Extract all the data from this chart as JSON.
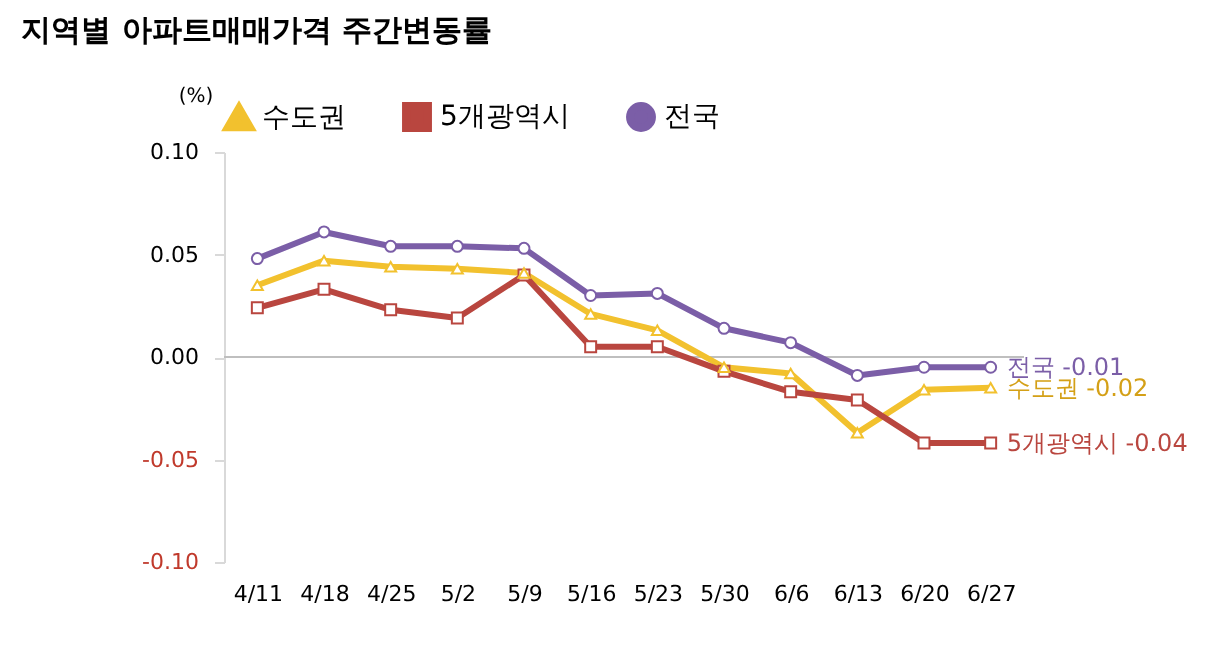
{
  "chart_data": {
    "type": "line",
    "title": "지역별 아파트매매가격 주간변동률",
    "ylabel": "(%)",
    "categories": [
      "4/11",
      "4/18",
      "4/25",
      "5/2",
      "5/9",
      "5/16",
      "5/23",
      "5/30",
      "6/6",
      "6/13",
      "6/20",
      "6/27"
    ],
    "series": [
      {
        "name": "수도권",
        "color": "#f2c12e",
        "marker": "triangle",
        "values": [
          0.035,
          0.047,
          0.044,
          0.043,
          0.041,
          0.021,
          0.013,
          -0.005,
          -0.008,
          -0.037,
          -0.016,
          -0.015
        ]
      },
      {
        "name": "5개광역시",
        "color": "#b9463f",
        "marker": "square",
        "values": [
          0.024,
          0.033,
          0.023,
          0.019,
          0.04,
          0.005,
          0.005,
          -0.007,
          -0.017,
          -0.021,
          -0.042,
          -0.042
        ]
      },
      {
        "name": "전국",
        "color": "#7b5ea7",
        "marker": "circle",
        "values": [
          0.048,
          0.061,
          0.054,
          0.054,
          0.053,
          0.03,
          0.031,
          0.014,
          0.007,
          -0.009,
          -0.005,
          -0.005
        ]
      }
    ],
    "ylim": [
      -0.1,
      0.1
    ],
    "yticks": [
      {
        "value": -0.1,
        "label": "-0.10"
      },
      {
        "value": -0.05,
        "label": "-0.05"
      },
      {
        "value": 0,
        "label": "0.00"
      },
      {
        "value": 0.05,
        "label": "0.05"
      },
      {
        "value": 0.1,
        "label": "0.10"
      }
    ],
    "ref_lines": [
      {
        "axis": "y",
        "value": 0,
        "color": "#bfbfbf"
      }
    ],
    "annotations": [
      {
        "text": "전국 -0.01",
        "x": "6/27",
        "y": -0.005
      },
      {
        "text": "수도권 -0.02",
        "x": "6/27",
        "y": -0.015
      },
      {
        "text": "5개광역시 -0.04",
        "x": "6/27",
        "y": -0.042
      }
    ],
    "legend": "top",
    "grid": false
  }
}
